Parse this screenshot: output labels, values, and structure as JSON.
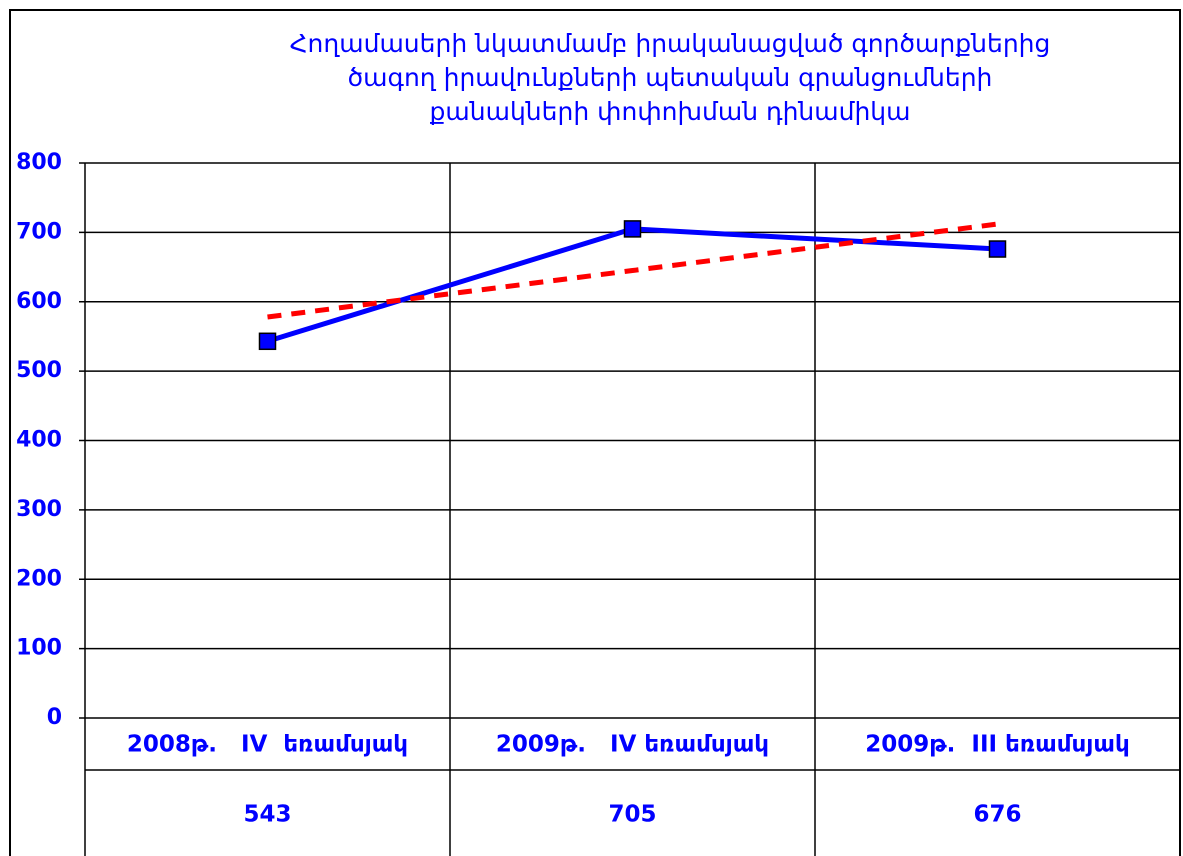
{
  "chart_data": {
    "type": "line",
    "title": [
      "Հողամասերի  նկատմամբ իրականացված գործարքներից",
      "ծագող իրավունքների  պետական  գրանցումների",
      "քանակների  փոփոխման  դինամիկա"
    ],
    "categories": [
      "2008թ.   IV  եռամսյակ",
      "2009թ.   IV եռամսյակ",
      "2009թ.  III եռամսյակ"
    ],
    "series": [
      {
        "color": "#0000ff",
        "values": [
          543,
          705,
          676
        ]
      },
      {
        "color": "#ff0000",
        "dashed": true,
        "values": [
          578,
          645,
          712
        ]
      }
    ],
    "ylim": [
      0,
      800
    ],
    "yticks": [
      0,
      100,
      200,
      300,
      400,
      500,
      600,
      700,
      800
    ],
    "grid": true,
    "data_table": true
  }
}
